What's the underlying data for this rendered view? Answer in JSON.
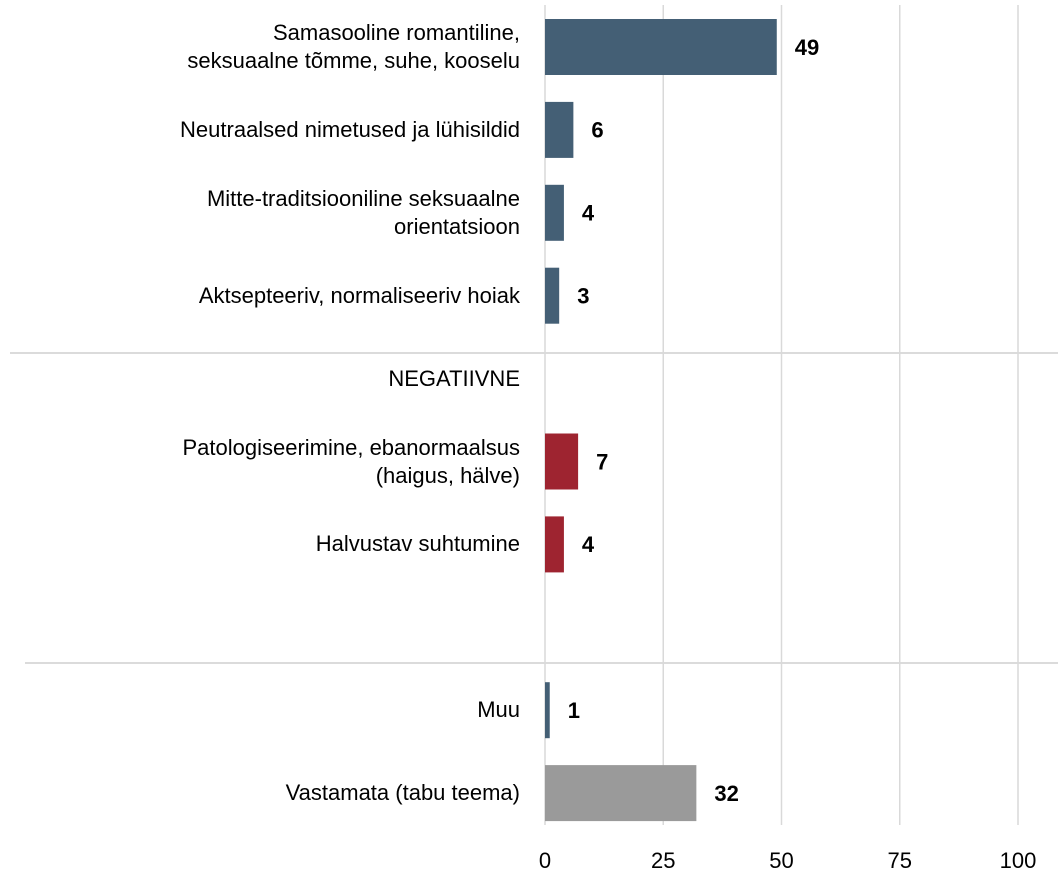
{
  "chart_data": {
    "type": "hbar",
    "categories": [
      "Samasooline romantiline,\nseksuaalne tõmme, suhe, kooselu",
      "Neutraalsed nimetused ja lühisildid",
      "Mitte-traditsiooniline seksuaalne\norientatsioon",
      "Aktsepteeriv, normaliseeriv hoiak",
      "NEGATIIVNE",
      "Patologiseerimine, ebanormaalsus\n(haigus, hälve)",
      "Halvustav suhtumine",
      null,
      "Muu",
      "Vastamata (tabu teema)"
    ],
    "values": [
      49,
      6,
      4,
      3,
      null,
      7,
      4,
      null,
      1,
      32
    ],
    "colors": [
      "#445f75",
      "#445f75",
      "#445f75",
      "#445f75",
      null,
      "#9e2430",
      "#9e2430",
      null,
      "#445f75",
      "#9a9a9a"
    ],
    "xlim": [
      0,
      100
    ],
    "xticks": [
      0,
      25,
      50,
      75,
      100
    ],
    "grid": true
  }
}
